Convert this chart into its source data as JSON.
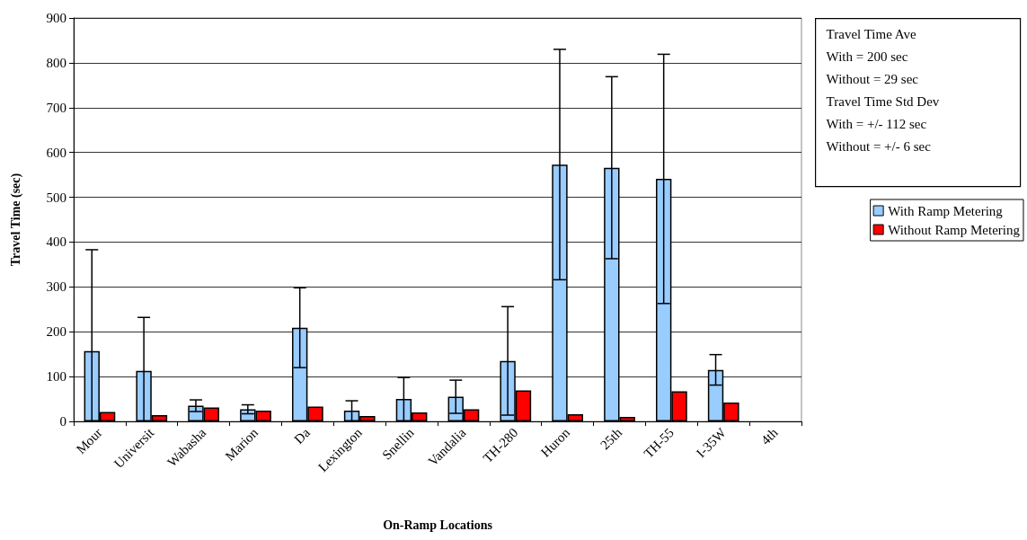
{
  "chart_data": {
    "type": "bar",
    "xlabel": "On-Ramp Locations",
    "ylabel": "Travel Time (sec)",
    "categories": [
      "Mour",
      "Universit",
      "Wabasha",
      "Marion",
      "Da",
      "Lexington",
      "Snellin",
      "Vandalia",
      "TH-280",
      "Huron",
      "25th",
      "TH-55",
      "I-35W",
      "4th"
    ],
    "series": [
      {
        "name": "With Ramp Metering",
        "color": "#99ccff",
        "values": [
          157,
          113,
          35,
          27,
          209,
          24,
          50,
          55,
          135,
          573,
          566,
          541,
          115,
          null
        ],
        "errors": [
          [
            0,
            383
          ],
          [
            0,
            232
          ],
          13,
          10,
          89,
          [
            0,
            46
          ],
          [
            0,
            98
          ],
          37,
          121,
          257,
          203,
          278,
          34,
          null
        ]
      },
      {
        "name": "Without Ramp Metering",
        "color": "#ff0000",
        "values": [
          21,
          14,
          31,
          24,
          33,
          12,
          20,
          27,
          69,
          16,
          10,
          67,
          42,
          null
        ]
      }
    ],
    "ylim": [
      0,
      900
    ],
    "yticks": [
      0,
      100,
      200,
      300,
      400,
      500,
      600,
      700,
      800,
      900
    ],
    "grid": "y",
    "legend": "right",
    "annotations": [
      "Travel Time Ave",
      "With = 200 sec",
      "Without = 29 sec",
      "Travel Time Std Dev",
      "With = +/- 112 sec",
      "Without = +/- 6 sec"
    ]
  }
}
